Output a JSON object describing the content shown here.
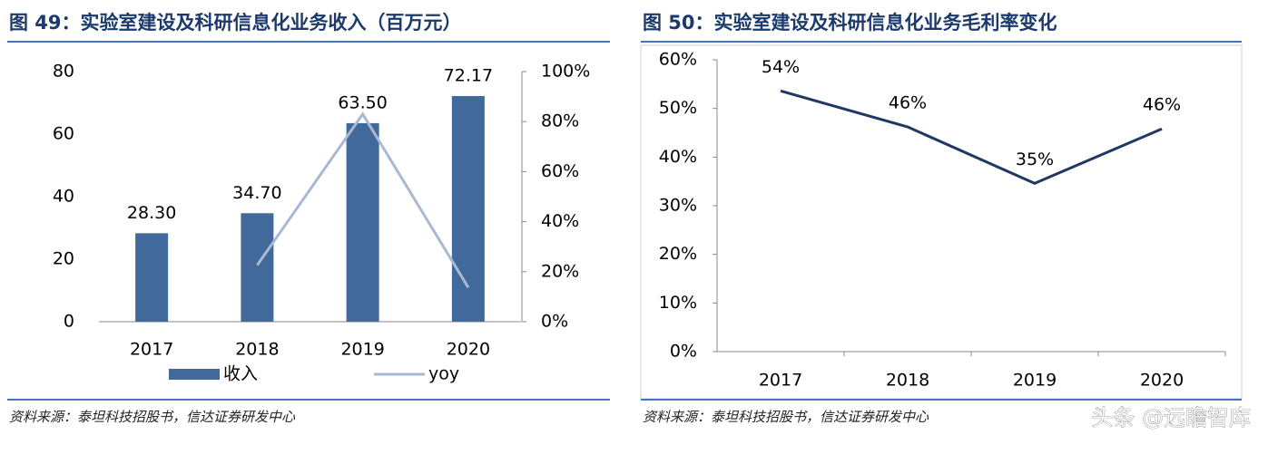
{
  "chart_data": [
    {
      "type": "bar",
      "title": "图 49：实验室建设及科研信息化业务收入（百万元）",
      "categories": [
        "2017",
        "2018",
        "2019",
        "2020"
      ],
      "series": [
        {
          "name": "收入",
          "type": "bar",
          "color": "#41699b",
          "values": [
            28.3,
            34.7,
            63.5,
            72.17
          ],
          "value_labels": [
            "28.30",
            "34.70",
            "63.50",
            "72.17"
          ]
        },
        {
          "name": "yoy",
          "type": "line",
          "axis": "y2",
          "color": "#a9b9d3",
          "values": [
            null,
            22.6,
            83.0,
            13.7
          ]
        }
      ],
      "ylim": [
        0,
        80
      ],
      "yticks": [
        0,
        20,
        40,
        60,
        80
      ],
      "y2lim": [
        0,
        100
      ],
      "y2ticks": [
        {
          "value": 0,
          "label": "0%"
        },
        {
          "value": 20,
          "label": "20%"
        },
        {
          "value": 40,
          "label": "40%"
        },
        {
          "value": 60,
          "label": "60%"
        },
        {
          "value": 80,
          "label": "80%"
        },
        {
          "value": 100,
          "label": "100%"
        }
      ],
      "legend": "bottom",
      "source": "资料来源：泰坦科技招股书，信达证券研发中心"
    },
    {
      "type": "line",
      "title": "图 50：实验室建设及科研信息化业务毛利率变化",
      "categories": [
        "2017",
        "2018",
        "2019",
        "2020"
      ],
      "values": [
        53.6,
        46.2,
        34.6,
        45.8
      ],
      "value_labels": [
        "54%",
        "46%",
        "35%",
        "46%"
      ],
      "color": "#1f3864",
      "ylim": [
        0,
        60
      ],
      "yticks": [
        {
          "value": 0,
          "label": "0%"
        },
        {
          "value": 10,
          "label": "10%"
        },
        {
          "value": 20,
          "label": "20%"
        },
        {
          "value": 30,
          "label": "30%"
        },
        {
          "value": 40,
          "label": "40%"
        },
        {
          "value": 50,
          "label": "50%"
        },
        {
          "value": 60,
          "label": "60%"
        }
      ],
      "source": "资料来源：泰坦科技招股书，信达证券研发中心"
    }
  ],
  "watermark": "头条 @远瞻智库"
}
